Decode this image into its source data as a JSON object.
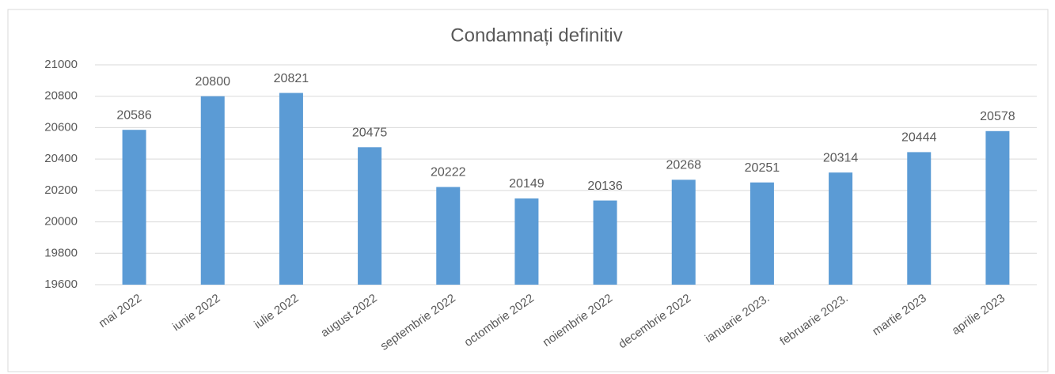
{
  "chart_data": {
    "type": "bar",
    "title": "Condamnați definitiv",
    "categories": [
      "mai 2022",
      "iunie 2022",
      "iulie 2022",
      "august 2022",
      "septembrie 2022",
      "octombrie 2022",
      "noiembrie 2022",
      "decembrie 2022",
      "ianuarie 2023.",
      "februarie 2023.",
      "martie 2023",
      "aprilie 2023"
    ],
    "values": [
      20586,
      20800,
      20821,
      20475,
      20222,
      20149,
      20136,
      20268,
      20251,
      20314,
      20444,
      20578
    ],
    "color": "#5b9bd5",
    "ylim": [
      19600,
      21000
    ],
    "yticks": [
      19600,
      19800,
      20000,
      20200,
      20400,
      20600,
      20800,
      21000
    ],
    "grid": true
  }
}
